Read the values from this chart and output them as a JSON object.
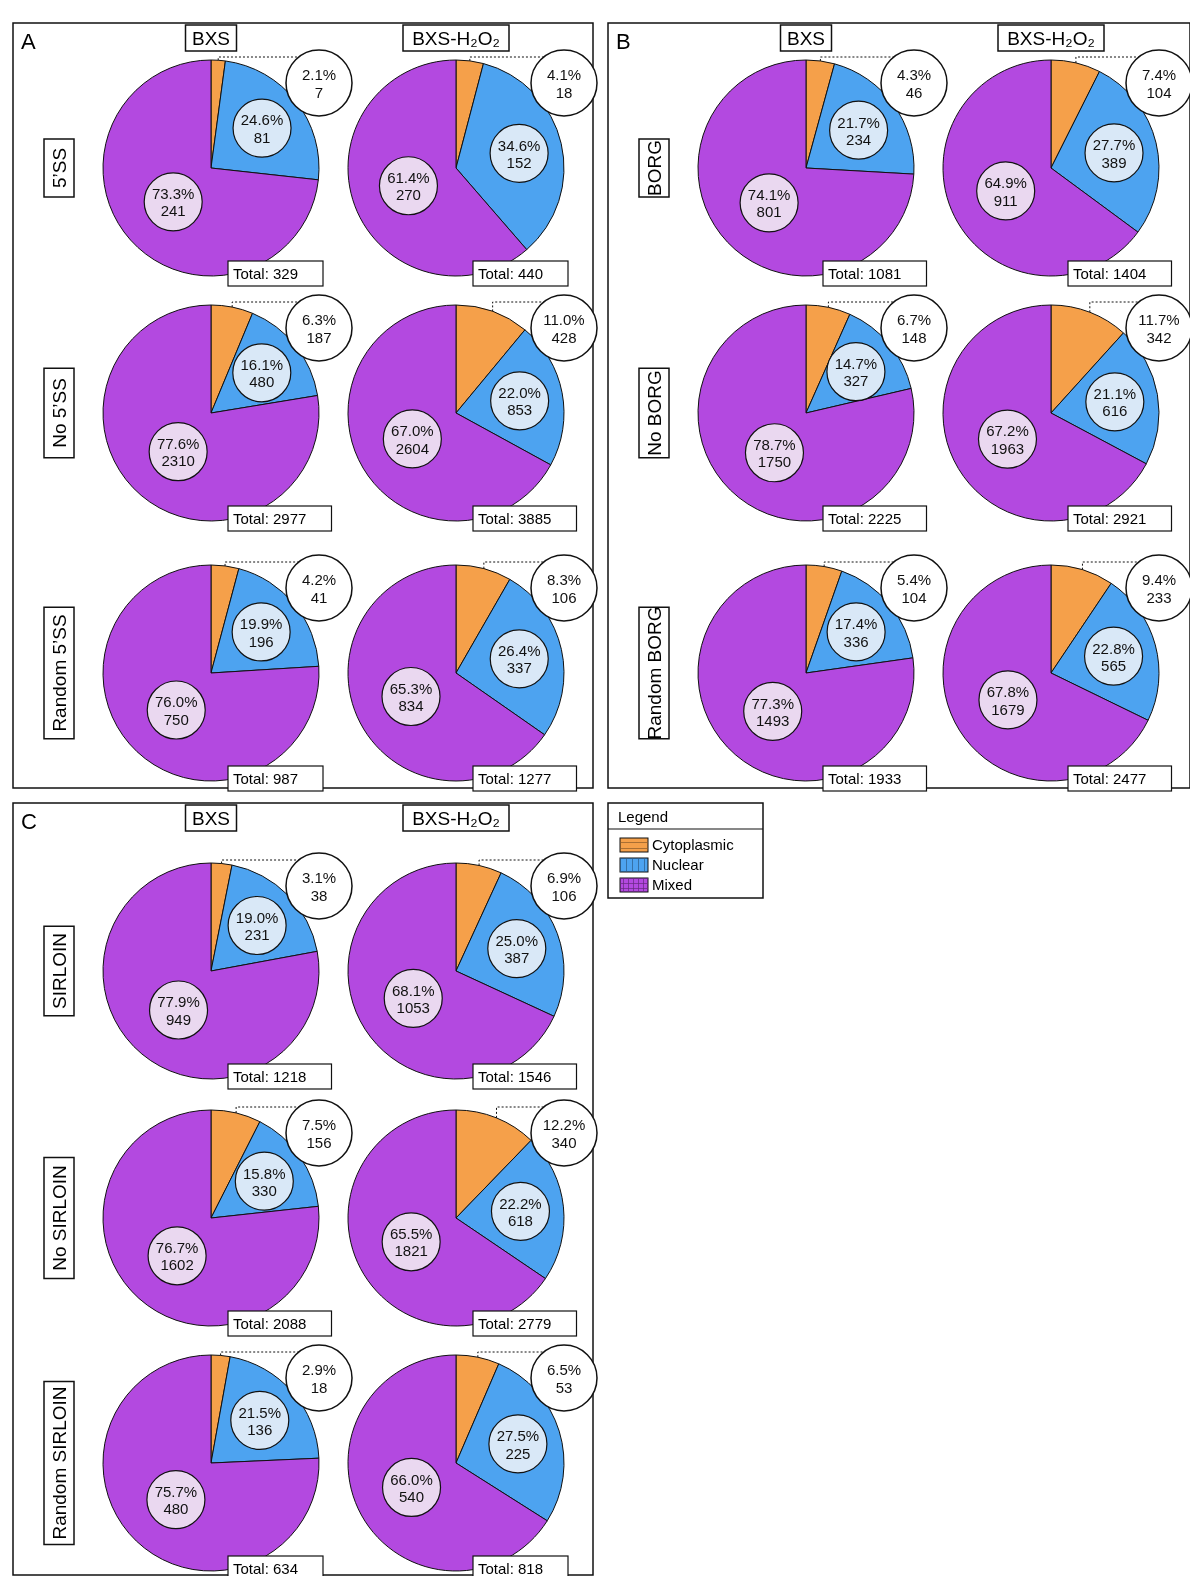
{
  "chart_data": [
    {
      "type": "pie",
      "title": "BXS",
      "ylabel": "5’SS",
      "colors": [
        "#f5a04a",
        "#4da3f0",
        "#b349e0"
      ],
      "categories": [
        null,
        null,
        null
      ],
      "values": [
        7,
        81,
        241
      ],
      "value_labels": [
        "2.1%\n7",
        "24.6%\n81",
        "73.3%\n241"
      ],
      "annotations": [
        "Total: 329",
        "A"
      ]
    },
    {
      "type": "pie",
      "title": "BXS-H₂O₂",
      "categories": [
        null,
        null,
        null
      ],
      "colors": [
        "#f5a04a",
        "#4da3f0",
        "#b349e0"
      ],
      "values": [
        18,
        152,
        270
      ],
      "value_labels": [
        "4.1%\n18",
        "34.6%\n152",
        "61.4%\n270"
      ],
      "annotations": [
        "Total: 440"
      ]
    },
    {
      "type": "pie",
      "ylabel": "No 5’SS",
      "categories": [
        null,
        null,
        null
      ],
      "colors": [
        "#f5a04a",
        "#4da3f0",
        "#b349e0"
      ],
      "values": [
        187,
        480,
        2310
      ],
      "value_labels": [
        "6.3%\n187",
        "16.1%\n480",
        "77.6%\n2310"
      ],
      "annotations": [
        "Total: 2977"
      ]
    },
    {
      "type": "pie",
      "categories": [
        null,
        null,
        null
      ],
      "colors": [
        "#f5a04a",
        "#4da3f0",
        "#b349e0"
      ],
      "values": [
        428,
        853,
        2604
      ],
      "value_labels": [
        "11.0%\n428",
        "22.0%\n853",
        "67.0%\n2604"
      ],
      "annotations": [
        "Total: 3885"
      ]
    },
    {
      "type": "pie",
      "ylabel": "Random 5’SS",
      "categories": [
        null,
        null,
        null
      ],
      "colors": [
        "#f5a04a",
        "#4da3f0",
        "#b349e0"
      ],
      "values": [
        41,
        196,
        750
      ],
      "value_labels": [
        "4.2%\n41",
        "19.9%\n196",
        "76.0%\n750"
      ],
      "annotations": [
        "Total: 987"
      ]
    },
    {
      "type": "pie",
      "categories": [
        null,
        null,
        null
      ],
      "colors": [
        "#f5a04a",
        "#4da3f0",
        "#b349e0"
      ],
      "values": [
        106,
        337,
        834
      ],
      "value_labels": [
        "8.3%\n106",
        "26.4%\n337",
        "65.3%\n834"
      ],
      "annotations": [
        "Total: 1277"
      ]
    },
    {
      "type": "pie",
      "title": "BXS",
      "ylabel": "BORG",
      "categories": [
        null,
        null,
        null
      ],
      "colors": [
        "#f5a04a",
        "#4da3f0",
        "#b349e0"
      ],
      "values": [
        46,
        234,
        801
      ],
      "value_labels": [
        "4.3%\n46",
        "21.7%\n234",
        "74.1%\n801"
      ],
      "annotations": [
        "Total: 1081",
        "B"
      ]
    },
    {
      "type": "pie",
      "title": "BXS-H₂O₂",
      "categories": [
        null,
        null,
        null
      ],
      "colors": [
        "#f5a04a",
        "#4da3f0",
        "#b349e0"
      ],
      "values": [
        104,
        389,
        911
      ],
      "value_labels": [
        "7.4%\n104",
        "27.7%\n389",
        "64.9%\n911"
      ],
      "annotations": [
        "Total: 1404"
      ]
    },
    {
      "type": "pie",
      "ylabel": "No BORG",
      "categories": [
        null,
        null,
        null
      ],
      "colors": [
        "#f5a04a",
        "#4da3f0",
        "#b349e0"
      ],
      "values": [
        148,
        327,
        1750
      ],
      "value_labels": [
        "6.7%\n148",
        "14.7%\n327",
        "78.7%\n1750"
      ],
      "annotations": [
        "Total: 2225"
      ]
    },
    {
      "type": "pie",
      "categories": [
        null,
        null,
        null
      ],
      "colors": [
        "#f5a04a",
        "#4da3f0",
        "#b349e0"
      ],
      "values": [
        342,
        616,
        1963
      ],
      "value_labels": [
        "11.7%\n342",
        "21.1%\n616",
        "67.2%\n1963"
      ],
      "annotations": [
        "Total: 2921"
      ]
    },
    {
      "type": "pie",
      "ylabel": "Random BORG",
      "categories": [
        null,
        null,
        null
      ],
      "colors": [
        "#f5a04a",
        "#4da3f0",
        "#b349e0"
      ],
      "values": [
        104,
        336,
        1493
      ],
      "value_labels": [
        "5.4%\n104",
        "17.4%\n336",
        "77.3%\n1493"
      ],
      "annotations": [
        "Total: 1933"
      ]
    },
    {
      "type": "pie",
      "categories": [
        null,
        null,
        null
      ],
      "colors": [
        "#f5a04a",
        "#4da3f0",
        "#b349e0"
      ],
      "values": [
        233,
        565,
        1679
      ],
      "value_labels": [
        "9.4%\n233",
        "22.8%\n565",
        "67.8%\n1679"
      ],
      "annotations": [
        "Total: 2477"
      ]
    },
    {
      "type": "pie",
      "title": "BXS",
      "ylabel": "SIRLOIN",
      "categories": [
        null,
        null,
        null
      ],
      "colors": [
        "#f5a04a",
        "#4da3f0",
        "#b349e0"
      ],
      "values": [
        38,
        231,
        949
      ],
      "value_labels": [
        "3.1%\n38",
        "19.0%\n231",
        "77.9%\n949"
      ],
      "annotations": [
        "Total: 1218",
        "C"
      ]
    },
    {
      "type": "pie",
      "title": "BXS-H₂O₂",
      "legend": "right",
      "legend_title": "Legend",
      "categories": [
        "Cytoplasmic",
        "Nuclear",
        "Mixed"
      ],
      "colors": [
        "#f5a04a",
        "#4da3f0",
        "#b349e0"
      ],
      "values": [
        106,
        387,
        1053
      ],
      "value_labels": [
        "6.9%\n106",
        "25.0%\n387",
        "68.1%\n1053"
      ],
      "annotations": [
        "Total: 1546"
      ]
    },
    {
      "type": "pie",
      "ylabel": "No SIRLOIN",
      "categories": [
        null,
        null,
        null
      ],
      "colors": [
        "#f5a04a",
        "#4da3f0",
        "#b349e0"
      ],
      "values": [
        156,
        330,
        1602
      ],
      "value_labels": [
        "7.5%\n156",
        "15.8%\n330",
        "76.7%\n1602"
      ],
      "annotations": [
        "Total: 2088"
      ]
    },
    {
      "type": "pie",
      "categories": [
        null,
        null,
        null
      ],
      "colors": [
        "#f5a04a",
        "#4da3f0",
        "#b349e0"
      ],
      "values": [
        340,
        618,
        1821
      ],
      "value_labels": [
        "12.2%\n340",
        "22.2%\n618",
        "65.5%\n1821"
      ],
      "annotations": [
        "Total: 2779"
      ]
    },
    {
      "type": "pie",
      "ylabel": "Random SIRLOIN",
      "categories": [
        null,
        null,
        null
      ],
      "colors": [
        "#f5a04a",
        "#4da3f0",
        "#b349e0"
      ],
      "values": [
        18,
        136,
        480
      ],
      "value_labels": [
        "2.9%\n18",
        "21.5%\n136",
        "75.7%\n480"
      ],
      "annotations": [
        "Total: 634"
      ]
    },
    {
      "type": "pie",
      "categories": [
        null,
        null,
        null
      ],
      "colors": [
        "#f5a04a",
        "#4da3f0",
        "#b349e0"
      ],
      "values": [
        53,
        225,
        540
      ],
      "value_labels": [
        "6.5%\n53",
        "27.5%\n225",
        "66.0%\n540"
      ],
      "annotations": [
        "Total: 818"
      ]
    }
  ]
}
